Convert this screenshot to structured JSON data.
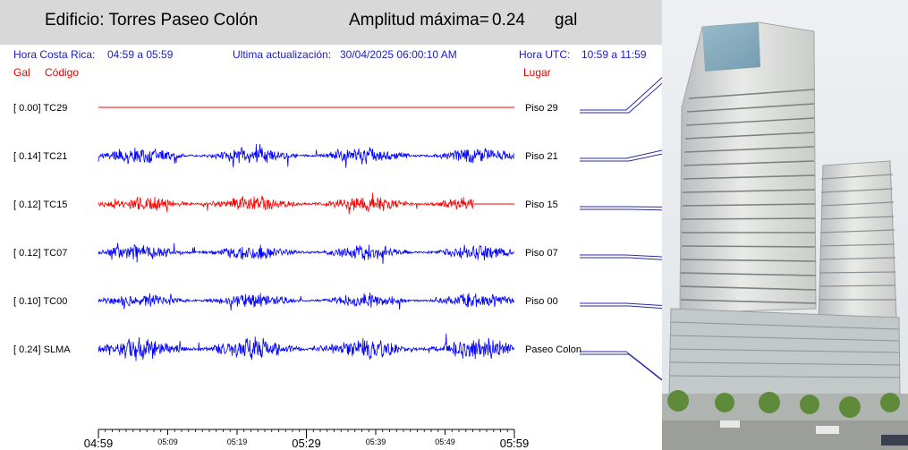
{
  "header": {
    "building": "Edificio: Torres Paseo Colón",
    "amplitude_label": "Amplitud máxima=",
    "amplitude_value": "0.24",
    "amplitude_unit": "gal"
  },
  "info": {
    "local_label": "Hora Costa Rica:",
    "local_range": "04:59 a 05:59",
    "update_label": "Ultima actualización:",
    "update_value": "30/04/2025 06:00:10 AM",
    "utc_label": "Hora UTC:",
    "utc_range": "10:59 a 11:59"
  },
  "columns": {
    "gal": "Gal",
    "code": "Código",
    "place": "Lugar"
  },
  "colors": {
    "normal": "#0000ff",
    "highlight": "#ff0000",
    "info": "#1a1acc"
  },
  "chart_data": {
    "type": "line",
    "x_ticks_major": [
      "04:59",
      "05:29",
      "05:59"
    ],
    "x_ticks_minor": [
      "05:09",
      "05:19",
      "05:39",
      "05:49"
    ],
    "series": [
      {
        "name": "TC29",
        "gal_label": "[   0.00] TC29",
        "amplitude": 0.0,
        "place": "Piso 29",
        "color": "#ff0000",
        "end_fraction": 1.0
      },
      {
        "name": "TC21",
        "gal_label": "[   0.14] TC21",
        "amplitude": 0.14,
        "place": "Piso 21",
        "color": "#0000ff",
        "end_fraction": 1.0
      },
      {
        "name": "TC15",
        "gal_label": "[   0.12] TC15",
        "amplitude": 0.12,
        "place": "Piso 15",
        "color": "#ff0000",
        "end_fraction": 0.902
      },
      {
        "name": "TC07",
        "gal_label": "[   0.12] TC07",
        "amplitude": 0.12,
        "place": "Piso 07",
        "color": "#0000ff",
        "end_fraction": 1.0
      },
      {
        "name": "TC00",
        "gal_label": "[   0.10] TC00",
        "amplitude": 0.1,
        "place": "Piso 00",
        "color": "#0000ff",
        "end_fraction": 1.0
      },
      {
        "name": "SLMA",
        "gal_label": "[   0.24] SLMA",
        "amplitude": 0.24,
        "place": "Paseo Colon",
        "color": "#0000ff",
        "end_fraction": 1.0
      }
    ]
  }
}
